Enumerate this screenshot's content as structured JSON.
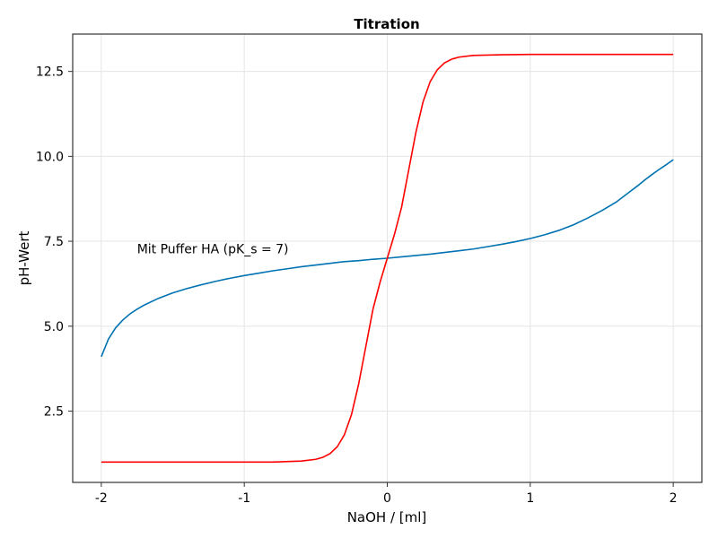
{
  "chart_data": {
    "type": "line",
    "title": "Titration",
    "xlabel": "NaOH / [ml]",
    "ylabel": "pH-Wert",
    "xlim": [
      -2.2,
      2.2
    ],
    "ylim": [
      0.4,
      13.6
    ],
    "xticks": [
      -2,
      -1,
      0,
      1,
      2
    ],
    "xtick_labels": [
      "-2",
      "-1",
      "0",
      "1",
      "2"
    ],
    "yticks": [
      2.5,
      5.0,
      7.5,
      10.0,
      12.5
    ],
    "ytick_labels": [
      "2.5",
      "5.0",
      "7.5",
      "10.0",
      "12.5"
    ],
    "grid": true,
    "annotations": [
      {
        "text": "Mit Puffer HA (pK_s = 7)",
        "x": -1.75,
        "y": 7.15
      }
    ],
    "series": [
      {
        "color": "#0072b2",
        "x": [
          -2.0,
          -1.95,
          -1.9,
          -1.85,
          -1.8,
          -1.75,
          -1.7,
          -1.6,
          -1.5,
          -1.4,
          -1.3,
          -1.2,
          -1.1,
          -1.0,
          -0.9,
          -0.8,
          -0.7,
          -0.6,
          -0.5,
          -0.4,
          -0.3,
          -0.2,
          -0.1,
          0.0,
          0.1,
          0.2,
          0.3,
          0.4,
          0.5,
          0.6,
          0.7,
          0.8,
          0.9,
          1.0,
          1.1,
          1.2,
          1.3,
          1.4,
          1.5,
          1.6,
          1.7,
          1.75,
          1.8,
          1.85,
          1.9,
          1.95,
          2.0
        ],
        "y": [
          4.1,
          4.62,
          4.95,
          5.18,
          5.36,
          5.5,
          5.62,
          5.82,
          5.98,
          6.11,
          6.22,
          6.32,
          6.41,
          6.49,
          6.56,
          6.63,
          6.69,
          6.75,
          6.8,
          6.85,
          6.9,
          6.93,
          6.97,
          7.0,
          7.04,
          7.08,
          7.12,
          7.17,
          7.22,
          7.27,
          7.34,
          7.41,
          7.49,
          7.58,
          7.69,
          7.82,
          7.98,
          8.18,
          8.4,
          8.65,
          8.97,
          9.13,
          9.3,
          9.46,
          9.61,
          9.75,
          9.9
        ]
      },
      {
        "color": "#ff0000",
        "x": [
          -2.0,
          -1.5,
          -1.0,
          -0.8,
          -0.6,
          -0.5,
          -0.45,
          -0.4,
          -0.35,
          -0.3,
          -0.25,
          -0.2,
          -0.15,
          -0.1,
          -0.05,
          0.0,
          0.05,
          0.1,
          0.15,
          0.2,
          0.25,
          0.3,
          0.35,
          0.4,
          0.45,
          0.5,
          0.6,
          0.8,
          1.0,
          1.5,
          2.0
        ],
        "y": [
          1.0,
          1.0,
          1.0,
          1.0,
          1.03,
          1.08,
          1.14,
          1.25,
          1.45,
          1.8,
          2.4,
          3.3,
          4.4,
          5.5,
          6.3,
          7.0,
          7.7,
          8.5,
          9.6,
          10.7,
          11.6,
          12.2,
          12.55,
          12.75,
          12.86,
          12.92,
          12.97,
          12.99,
          13.0,
          13.0,
          13.0
        ]
      }
    ]
  }
}
